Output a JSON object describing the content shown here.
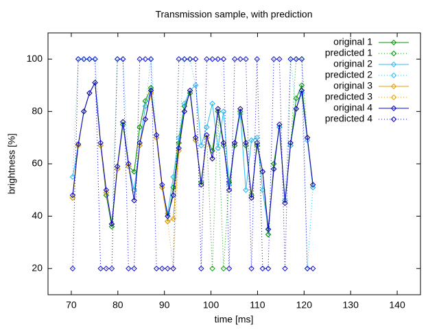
{
  "chart_data": {
    "type": "line",
    "title": "Transmission sample, with prediction",
    "xlabel": "time [ms]",
    "ylabel": "brightness [%]",
    "xlim": [
      65,
      145
    ],
    "xticks": [
      70,
      80,
      90,
      100,
      110,
      120,
      130,
      140
    ],
    "ylim": [
      10,
      110
    ],
    "yticks": [
      20,
      40,
      60,
      80,
      100
    ],
    "legend": "top-right",
    "x": [
      70.3,
      71.5,
      72.7,
      73.9,
      75.1,
      76.3,
      77.5,
      78.7,
      79.9,
      81.1,
      82.3,
      83.5,
      84.7,
      85.9,
      87.1,
      88.3,
      89.5,
      90.7,
      91.9,
      93.1,
      94.3,
      95.5,
      96.7,
      97.9,
      99.1,
      100.3,
      101.5,
      102.7,
      103.9,
      105.1,
      106.3,
      107.5,
      108.7,
      109.9,
      111.1,
      112.3,
      113.5,
      114.7,
      115.9,
      117.1,
      118.3,
      119.5,
      120.7,
      121.9
    ],
    "series": [
      {
        "name": "original 1",
        "color": "#009900",
        "dash": false,
        "values": [
          47,
          67,
          80,
          87,
          91,
          67,
          48,
          36,
          58,
          75,
          59,
          57,
          74,
          84,
          89,
          70,
          51,
          38,
          51,
          68,
          82,
          87,
          69,
          53,
          70,
          65,
          80,
          67,
          53,
          67,
          80,
          67,
          48,
          67,
          57,
          33,
          60,
          74,
          46,
          67,
          85,
          90,
          70,
          51
        ]
      },
      {
        "name": "predicted 1",
        "color": "#009900",
        "dash": true,
        "values": [
          47,
          67,
          80,
          87,
          91,
          67,
          48,
          36,
          58,
          75,
          59,
          57,
          74,
          84,
          89,
          70,
          51,
          38,
          51,
          68,
          82,
          87,
          69,
          53,
          70,
          20,
          80,
          20,
          53,
          67,
          80,
          67,
          48,
          67,
          57,
          33,
          60,
          74,
          46,
          67,
          100,
          100,
          70,
          51
        ]
      },
      {
        "name": "original 2",
        "color": "#33bbee",
        "dash": false,
        "values": [
          55,
          67,
          80,
          87,
          91,
          67,
          49,
          37,
          58,
          76,
          59,
          50,
          67,
          82,
          88,
          70,
          51,
          41,
          55,
          70,
          83,
          88,
          90,
          67,
          74,
          83,
          66,
          80,
          52,
          68,
          79,
          50,
          69,
          70,
          50,
          35,
          58,
          74,
          46,
          67,
          81,
          87,
          69,
          51
        ]
      },
      {
        "name": "predicted 2",
        "color": "#33bbee",
        "dash": true,
        "values": [
          55,
          100,
          100,
          100,
          100,
          67,
          49,
          37,
          100,
          100,
          59,
          50,
          67,
          82,
          100,
          70,
          51,
          41,
          55,
          70,
          100,
          100,
          90,
          67,
          74,
          83,
          66,
          80,
          52,
          68,
          79,
          50,
          69,
          70,
          50,
          35,
          58,
          74,
          46,
          100,
          81,
          87,
          20,
          51
        ]
      },
      {
        "name": "original 3",
        "color": "#e69f00",
        "dash": false,
        "values": [
          47,
          67,
          80,
          87,
          91,
          67,
          49,
          37,
          58,
          76,
          59,
          46,
          67,
          77,
          87,
          70,
          51,
          38,
          39,
          65,
          80,
          88,
          69,
          52,
          70,
          62,
          81,
          68,
          50,
          68,
          81,
          68,
          47,
          68,
          57,
          35,
          58,
          75,
          45,
          68,
          81,
          88,
          70,
          52
        ]
      },
      {
        "name": "predicted 3",
        "color": "#e69f00",
        "dash": true,
        "values": [
          47,
          67,
          80,
          87,
          91,
          67,
          49,
          37,
          58,
          76,
          59,
          46,
          67,
          77,
          87,
          70,
          51,
          38,
          20,
          65,
          80,
          88,
          69,
          52,
          70,
          62,
          81,
          68,
          50,
          68,
          81,
          68,
          47,
          68,
          57,
          35,
          58,
          75,
          45,
          68,
          81,
          88,
          70,
          52
        ]
      },
      {
        "name": "original 4",
        "color": "#0000cc",
        "dash": false,
        "values": [
          48,
          67.5,
          80,
          87,
          91,
          68,
          50,
          37,
          59,
          76,
          60,
          46,
          68,
          77,
          88,
          71,
          52,
          40,
          48,
          66,
          80,
          88,
          70,
          52,
          71,
          62,
          81,
          68,
          50,
          68,
          81,
          68,
          47,
          68,
          57,
          35,
          58,
          75,
          45,
          68,
          81,
          88,
          70,
          52
        ]
      },
      {
        "name": "predicted 4",
        "color": "#0000cc",
        "dash": true,
        "values": [
          20,
          100,
          100,
          100,
          100,
          20,
          20,
          20,
          100,
          100,
          20,
          20,
          100,
          100,
          100,
          20,
          20,
          20,
          20,
          100,
          100,
          100,
          100,
          20,
          100,
          100,
          100,
          100,
          20,
          100,
          100,
          100,
          20,
          100,
          20,
          20,
          100,
          100,
          20,
          100,
          100,
          100,
          20,
          20
        ]
      }
    ]
  }
}
